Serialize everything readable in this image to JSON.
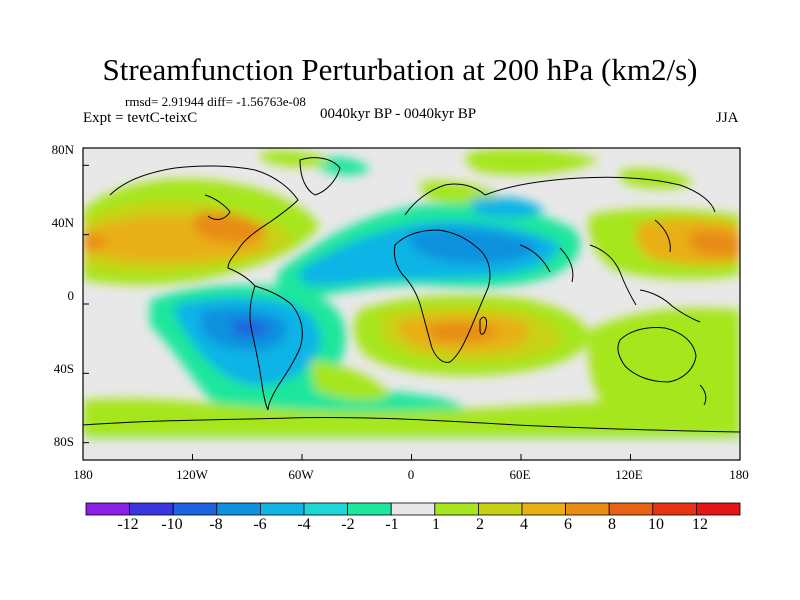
{
  "title": "Streamfunction Perturbation at 200 hPa (km2/s)",
  "stats_line": "rmsd= 2.91944 diff= -1.56763e-08",
  "experiment_label": "Expt = tevtC-teixC",
  "period_label": "0040kyr BP - 0040kyr BP",
  "season_label": "JJA",
  "y_axis": {
    "ticks": [
      {
        "label": "80N",
        "value": 80
      },
      {
        "label": "40N",
        "value": 40
      },
      {
        "label": "0",
        "value": 0
      },
      {
        "label": "40S",
        "value": -40
      },
      {
        "label": "80S",
        "value": -80
      }
    ]
  },
  "x_axis": {
    "ticks": [
      {
        "label": "180",
        "value": -180
      },
      {
        "label": "120W",
        "value": -120
      },
      {
        "label": "60W",
        "value": -60
      },
      {
        "label": "0",
        "value": 0
      },
      {
        "label": "60E",
        "value": 60
      },
      {
        "label": "120E",
        "value": 120
      },
      {
        "label": "180",
        "value": 180
      }
    ]
  },
  "colorbar": {
    "labels": [
      "-12",
      "-10",
      "-8",
      "-6",
      "-4",
      "-2",
      "-1",
      "1",
      "2",
      "4",
      "6",
      "8",
      "10",
      "12"
    ],
    "colors": [
      "#8a20e8",
      "#3a36de",
      "#1e64e0",
      "#1090de",
      "#10b4e6",
      "#1ed6d6",
      "#1ee69c",
      "#e8e8e8",
      "#a6e61e",
      "#c8d214",
      "#e8b014",
      "#e88c14",
      "#e86414",
      "#e83214",
      "#e61414"
    ]
  },
  "colors": {
    "ocean_neutral": "#e8e8e8",
    "frame": "#000000"
  }
}
